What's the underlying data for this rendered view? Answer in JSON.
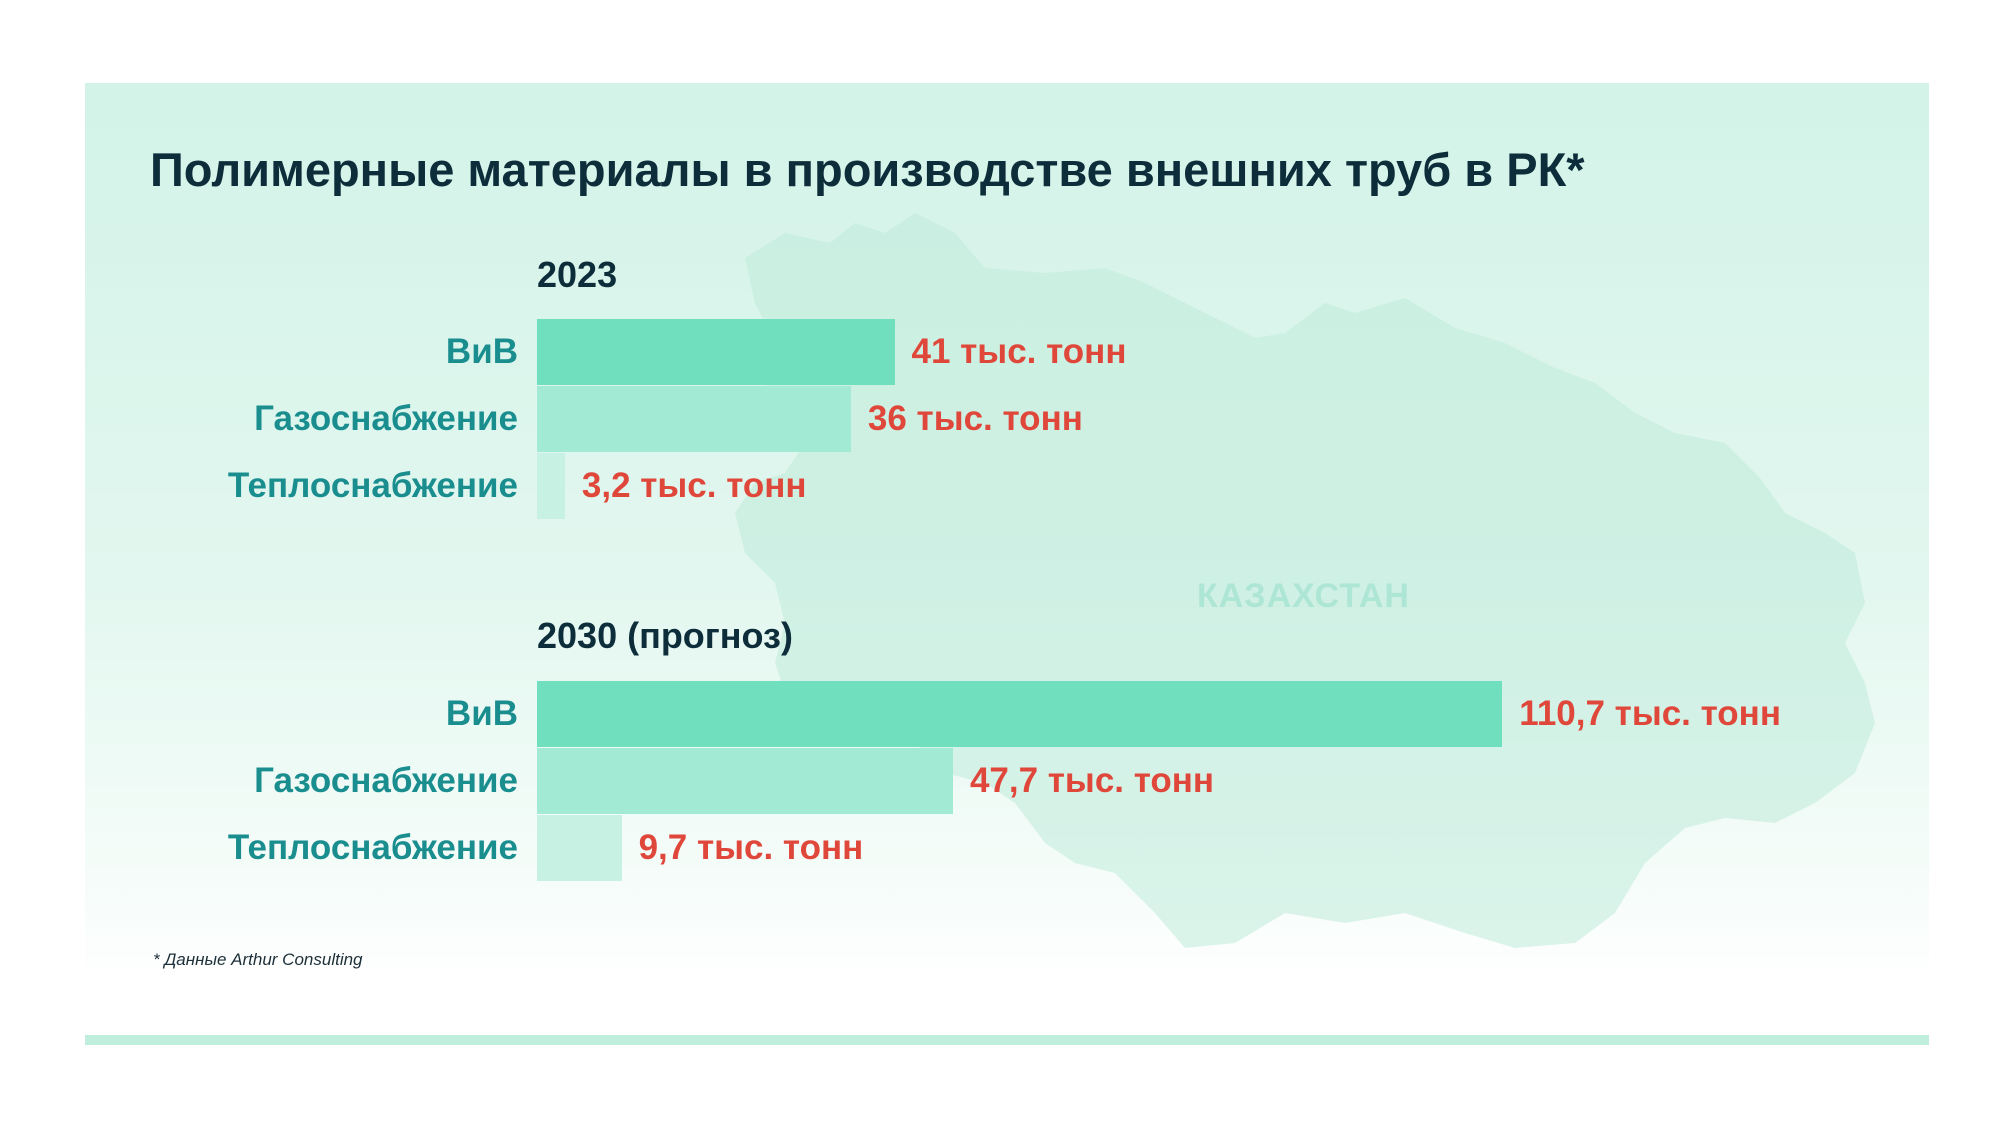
{
  "title": "Полимерные материалы в производстве внешних труб в РК*",
  "map_label": "КАЗАХСТАН",
  "footnote": "* Данные Arthur Consulting",
  "colors": {
    "panel_bg": "#d3f3e8",
    "bar_primary": "#6fdfbd",
    "bar_secondary": "#a3ead5",
    "bar_tertiary": "#c7f1e3",
    "category_text": "#1a8d8f",
    "value_text": "#e0473b",
    "title_text": "#0e2d3b"
  },
  "chart_data": {
    "type": "bar",
    "orientation": "horizontal",
    "unit": "тыс. тонн",
    "categories": [
      "ВиВ",
      "Газоснабжение",
      "Теплоснабжение"
    ],
    "series": [
      {
        "name": "2023",
        "values": [
          41,
          36,
          3.2
        ],
        "value_labels": [
          "41 тыс. тонн",
          "36 тыс. тонн",
          "3,2 тыс. тонн"
        ]
      },
      {
        "name": "2030 (прогноз)",
        "values": [
          110.7,
          47.7,
          9.7
        ],
        "value_labels": [
          "110,7 тыс. тонн",
          "47,7 тыс. тонн",
          "9,7 тыс. тонн"
        ]
      }
    ],
    "grid": false,
    "axes_visible": false
  }
}
